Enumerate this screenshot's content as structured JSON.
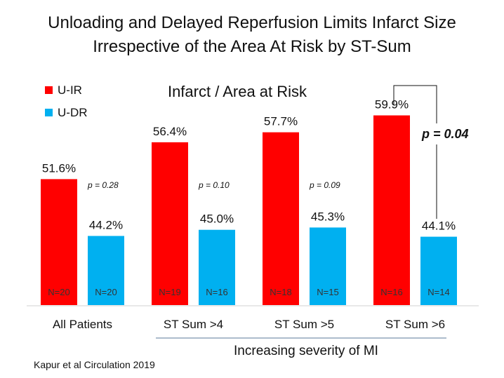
{
  "title_lines": [
    "Unloading and Delayed Reperfusion Limits Infarct Size",
    "Irrespective of the Area At Risk by ST-Sum"
  ],
  "citation": "Kapur et al Circulation 2019",
  "chart_data": {
    "type": "bar",
    "title": "Infarct / Area at Risk",
    "categories": [
      "All Patients",
      "ST Sum >4",
      "ST Sum >5",
      "ST Sum >6"
    ],
    "series": [
      {
        "name": "U-IR",
        "color": "#ff0000",
        "values": [
          51.6,
          56.4,
          57.7,
          59.9
        ],
        "labels": [
          "51.6%",
          "56.4%",
          "57.7%",
          "59.9%"
        ],
        "n": [
          "N=20",
          "N=19",
          "N=18",
          "N=16"
        ]
      },
      {
        "name": "U-DR",
        "color": "#00b0f0",
        "values": [
          44.2,
          45.0,
          45.3,
          44.1
        ],
        "labels": [
          "44.2%",
          "45.0%",
          "45.3%",
          "44.1%"
        ],
        "n": [
          "N=20",
          "N=16",
          "N=15",
          "N=14"
        ]
      }
    ],
    "p_values": [
      "p = 0.28",
      "p = 0.10",
      "p = 0.09",
      "p = 0.04"
    ],
    "xlabel": "Increasing severity of MI",
    "ylim": [
      35.2,
      75
    ],
    "legend": "top-left",
    "grid": false
  }
}
